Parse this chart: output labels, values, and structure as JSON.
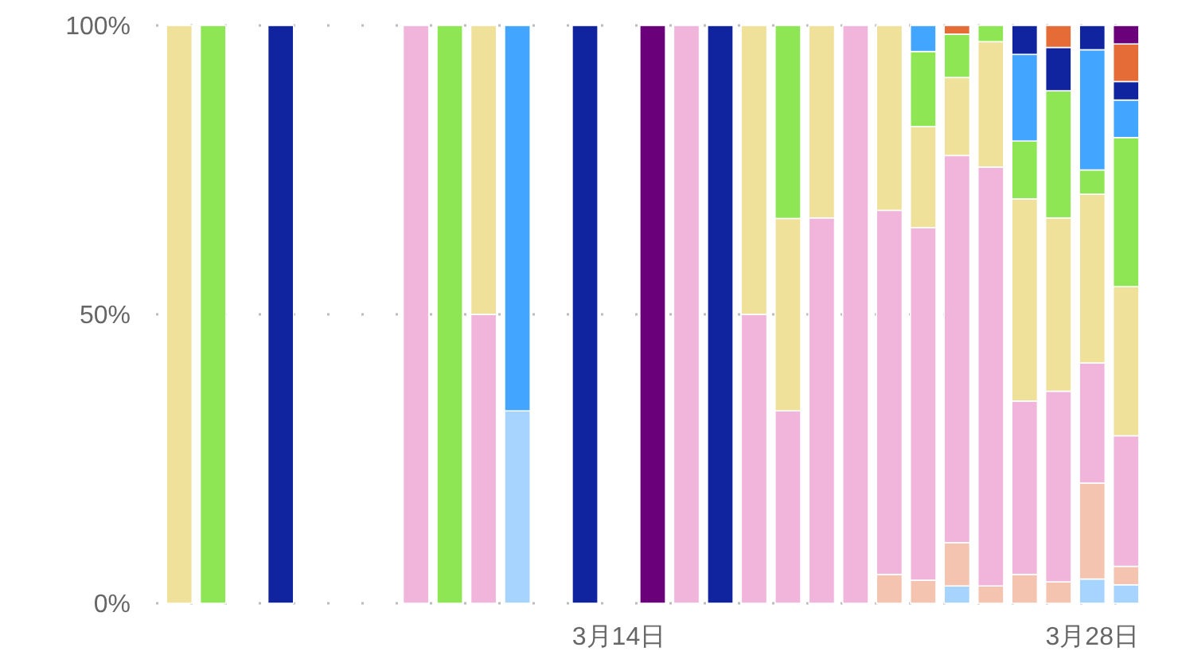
{
  "chart_data": {
    "type": "bar",
    "stacked": true,
    "grid": "y",
    "ylim": [
      0,
      100
    ],
    "yticks": [
      {
        "value": 0,
        "label": "0%"
      },
      {
        "value": 50,
        "label": "50%"
      },
      {
        "value": 100,
        "label": "100%"
      }
    ],
    "categories": [
      null,
      null,
      null,
      null,
      null,
      null,
      null,
      null,
      null,
      null,
      null,
      null,
      null,
      "3月14日",
      null,
      null,
      null,
      null,
      null,
      null,
      null,
      null,
      null,
      null,
      null,
      null,
      null,
      "3月28日",
      null
    ],
    "series": [
      {
        "color": "#a6d4ff",
        "values": [
          null,
          null,
          null,
          null,
          null,
          null,
          null,
          null,
          null,
          null,
          33.3,
          null,
          null,
          null,
          null,
          null,
          null,
          null,
          null,
          null,
          null,
          null,
          null,
          3,
          null,
          null,
          null,
          4.2,
          3.2
        ]
      },
      {
        "color": "#f4c4b0",
        "values": [
          null,
          null,
          null,
          null,
          null,
          null,
          null,
          null,
          null,
          null,
          null,
          null,
          null,
          null,
          null,
          null,
          null,
          null,
          null,
          null,
          null,
          5,
          4,
          7.5,
          3,
          5,
          3.7,
          16.6,
          3.2
        ]
      },
      {
        "color": "#f1b5dc",
        "values": [
          null,
          null,
          null,
          null,
          null,
          null,
          null,
          100,
          null,
          50,
          null,
          null,
          null,
          null,
          null,
          100,
          null,
          50,
          33.3,
          66.7,
          100,
          63,
          61,
          67,
          72.5,
          30,
          33,
          20.8,
          22.6
        ]
      },
      {
        "color": "#efe09a",
        "values": [
          100,
          null,
          null,
          null,
          null,
          null,
          null,
          null,
          null,
          50,
          null,
          null,
          null,
          null,
          null,
          null,
          null,
          50,
          33.3,
          33.3,
          null,
          32,
          17.5,
          13.5,
          21.7,
          35,
          30,
          29.2,
          25.8
        ]
      },
      {
        "color": "#8ee654",
        "values": [
          null,
          100,
          null,
          null,
          null,
          null,
          null,
          null,
          100,
          null,
          null,
          null,
          null,
          null,
          null,
          null,
          null,
          null,
          33.4,
          null,
          null,
          null,
          13,
          7.5,
          2.8,
          10,
          22,
          4.2,
          25.8
        ]
      },
      {
        "color": "#42a5ff",
        "values": [
          null,
          null,
          null,
          null,
          null,
          null,
          null,
          null,
          null,
          null,
          66.7,
          null,
          null,
          null,
          null,
          null,
          null,
          null,
          null,
          null,
          null,
          null,
          4.5,
          null,
          null,
          15,
          null,
          20.8,
          6.5
        ]
      },
      {
        "color": "#11249f",
        "values": [
          null,
          null,
          null,
          100,
          null,
          null,
          null,
          null,
          null,
          null,
          null,
          null,
          100,
          null,
          null,
          null,
          100,
          null,
          null,
          null,
          null,
          null,
          null,
          null,
          null,
          5,
          7.5,
          4.2,
          3.2
        ]
      },
      {
        "color": "#e66c37",
        "values": [
          null,
          null,
          null,
          null,
          null,
          null,
          null,
          null,
          null,
          null,
          null,
          null,
          null,
          null,
          null,
          null,
          null,
          null,
          null,
          null,
          null,
          null,
          null,
          1.5,
          null,
          null,
          3.8,
          null,
          6.5
        ]
      },
      {
        "color": "#6b007b",
        "values": [
          null,
          null,
          null,
          null,
          null,
          null,
          null,
          null,
          null,
          null,
          null,
          null,
          null,
          null,
          100,
          null,
          null,
          null,
          null,
          null,
          null,
          null,
          null,
          null,
          null,
          null,
          null,
          null,
          3.2
        ]
      }
    ]
  }
}
